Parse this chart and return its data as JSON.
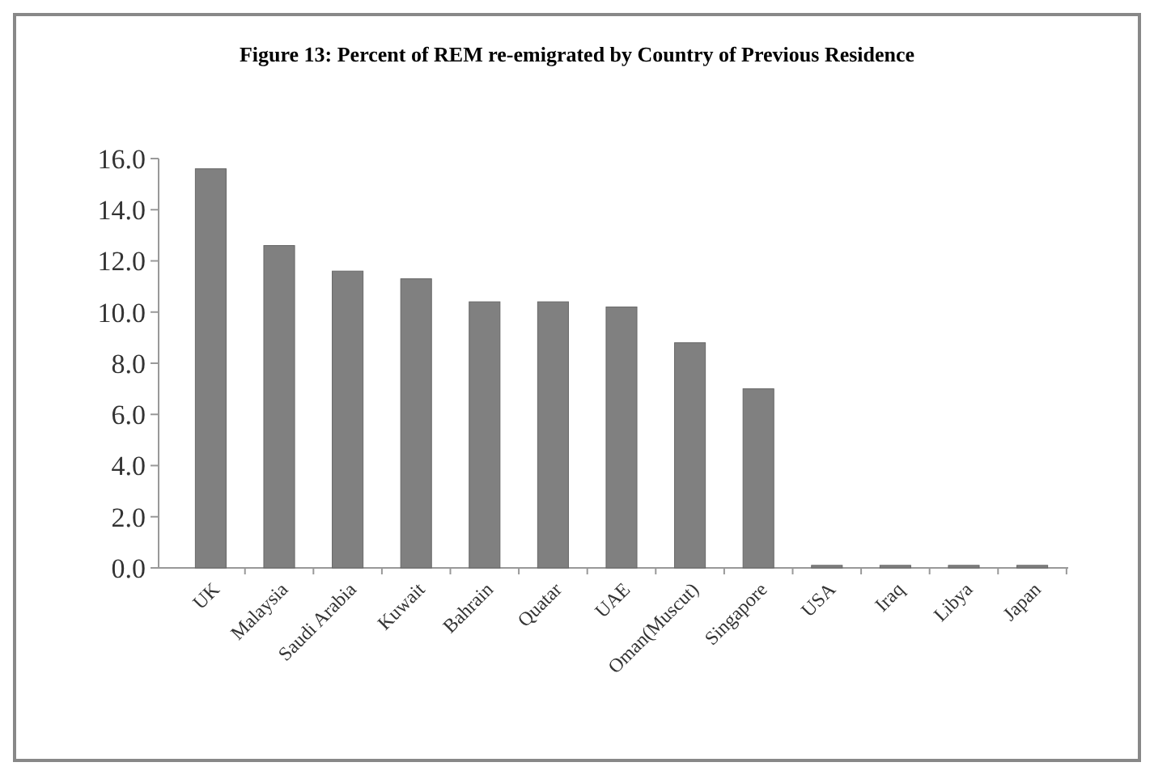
{
  "chart_data": {
    "type": "bar",
    "title": "Figure 13: Percent of REM re-emigrated by Country of Previous Residence",
    "categories": [
      "UK",
      "Malaysia",
      "Saudi Arabia",
      "Kuwait",
      "Bahrain",
      "Quatar",
      "UAE",
      "Oman(Muscut)",
      "Singapore",
      "USA",
      "Iraq",
      "Libya",
      "Japan"
    ],
    "values": [
      15.6,
      12.6,
      11.6,
      11.3,
      10.4,
      10.4,
      10.2,
      8.8,
      7.0,
      0.1,
      0.1,
      0.1,
      0.1
    ],
    "color": "#808080",
    "ylim": [
      0,
      16
    ],
    "yticks": [
      {
        "value": 0,
        "label": "0.0"
      },
      {
        "value": 2,
        "label": "2.0"
      },
      {
        "value": 4,
        "label": "4.0"
      },
      {
        "value": 6,
        "label": "6.0"
      },
      {
        "value": 8,
        "label": "8.0"
      },
      {
        "value": 10,
        "label": "10.0"
      },
      {
        "value": 12,
        "label": "12.0"
      },
      {
        "value": 14,
        "label": "14.0"
      },
      {
        "value": 16,
        "label": "16.0"
      }
    ],
    "grid": false
  }
}
